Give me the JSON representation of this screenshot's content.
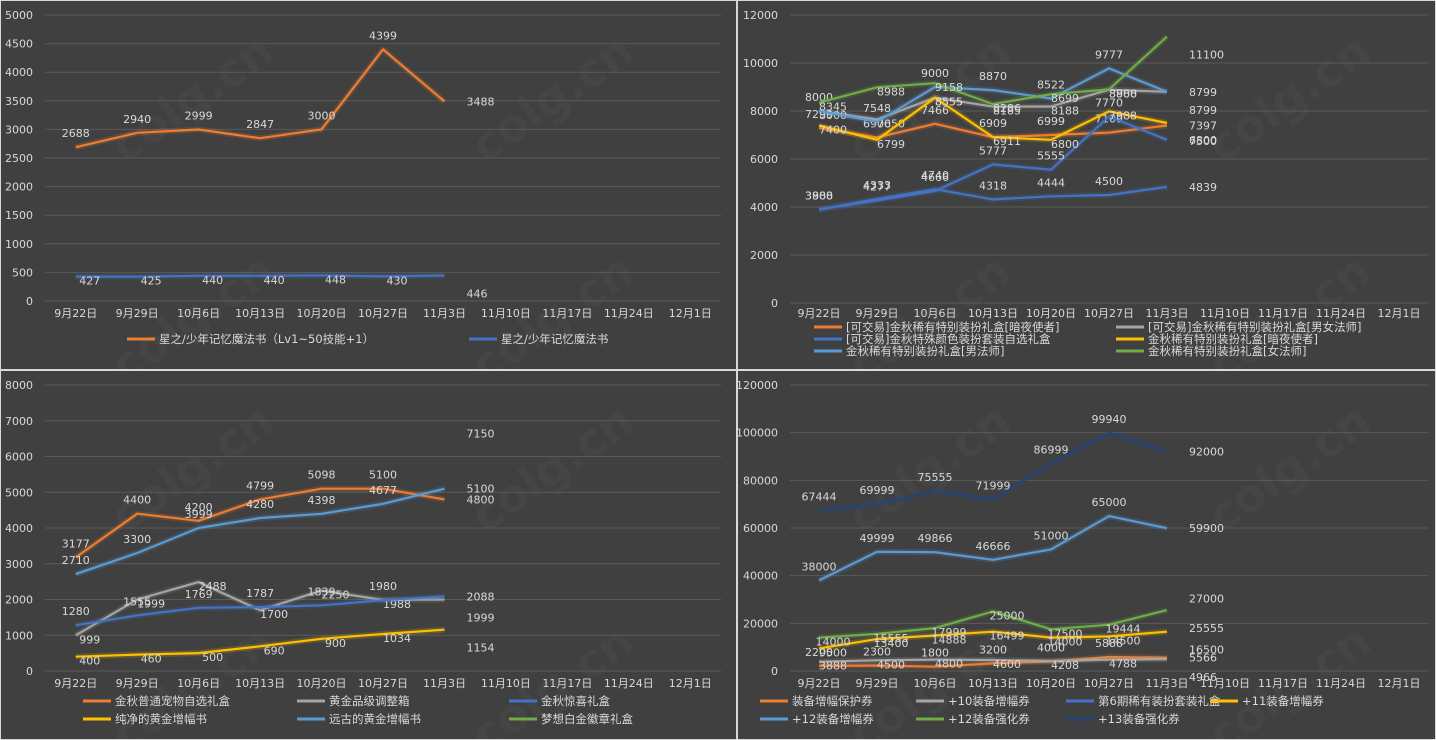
{
  "chart_data": [
    {
      "type": "line",
      "title": "",
      "xlabel": "",
      "ylabel": "",
      "categories": [
        "9月22日",
        "9月29日",
        "10月6日",
        "10月13日",
        "10月20日",
        "10月27日",
        "11月3日",
        "11月10日",
        "11月17日",
        "11月24日",
        "12月1日"
      ],
      "ylim": [
        0,
        5000
      ],
      "yticks": [
        0,
        500,
        1000,
        1500,
        2000,
        2500,
        3000,
        3500,
        4000,
        4500,
        5000
      ],
      "grid": true,
      "legend_position": "bottom",
      "series": [
        {
          "name": "星之/少年记忆魔法书（Lv1~50技能+1）",
          "color": "#ed7d31",
          "values": [
            2688,
            2940,
            2999,
            2847,
            3000,
            4399,
            3488
          ]
        },
        {
          "name": "星之/少年记忆魔法书",
          "color": "#4472c4",
          "values": [
            427,
            425,
            440,
            440,
            448,
            430,
            446
          ]
        }
      ]
    },
    {
      "type": "line",
      "title": "",
      "xlabel": "",
      "ylabel": "",
      "categories": [
        "9月22日",
        "9月29日",
        "10月6日",
        "10月13日",
        "10月20日",
        "10月27日",
        "11月3日",
        "11月10日",
        "11月17日",
        "11月24日",
        "12月1日"
      ],
      "ylim": [
        0,
        12000
      ],
      "yticks": [
        0,
        2000,
        4000,
        6000,
        8000,
        10000,
        12000
      ],
      "grid": true,
      "legend_position": "bottom",
      "series": [
        {
          "name": "[可交易]金秋稀有特别装扮礼盒[暗夜使者]",
          "color": "#ed7d31",
          "values": [
            7299,
            6900,
            7466,
            6909,
            6999,
            7100,
            7397
          ]
        },
        {
          "name": "[可交易]金秋稀有特别装扮礼盒[男女法师]",
          "color": "#a5a5a5",
          "values": [
            8000,
            7650,
            8555,
            8185,
            8188,
            8888,
            8799
          ]
        },
        {
          "name": "[可交易]金秋特殊颜色装扮套装自选礼盒",
          "color": "#4472c4",
          "values": [
            3900,
            4277,
            4666,
            5777,
            5555,
            7770,
            6800
          ]
        },
        {
          "name": "金秋稀有特别装扮礼盒[暗夜使者]",
          "color": "#ffc000",
          "values": [
            7400,
            6799,
            8555,
            6911,
            6800,
            7988,
            7500
          ]
        },
        {
          "name": "金秋稀有特别装扮礼盒[男法师]",
          "color": "#5b9bd5",
          "values": [
            8000,
            7548,
            9000,
            8870,
            8522,
            9777,
            8799
          ]
        },
        {
          "name": "金秋稀有特别装扮礼盒[女法师]",
          "color": "#70ad47",
          "values": [
            8345,
            8988,
            9158,
            8286,
            8699,
            8900,
            11100
          ]
        },
        {
          "name": "",
          "color": "#4472c4",
          "hidden_legend": true,
          "values": [
            3888,
            4333,
            4740,
            4318,
            4444,
            4500,
            4839
          ]
        }
      ]
    },
    {
      "type": "line",
      "title": "",
      "xlabel": "",
      "ylabel": "",
      "categories": [
        "9月22日",
        "9月29日",
        "10月6日",
        "10月13日",
        "10月20日",
        "10月27日",
        "11月3日",
        "11月10日",
        "11月17日",
        "11月24日",
        "12月1日"
      ],
      "ylim": [
        0,
        8000
      ],
      "yticks": [
        0,
        1000,
        2000,
        3000,
        4000,
        5000,
        6000,
        7000,
        8000
      ],
      "grid": true,
      "legend_position": "bottom",
      "series": [
        {
          "name": "金秋普通宠物自选礼盒",
          "color": "#ed7d31",
          "values": [
            3177,
            4400,
            4200,
            4799,
            5098,
            5100,
            4800
          ]
        },
        {
          "name": "黄金品级调整箱",
          "color": "#a5a5a5",
          "values": [
            999,
            1999,
            2488,
            1700,
            2250,
            1988,
            1999
          ]
        },
        {
          "name": "金秋惊喜礼盒",
          "color": "#4472c4",
          "values": [
            1280,
            1555,
            1769,
            1787,
            1839,
            1980,
            2088
          ]
        },
        {
          "name": "纯净的黄金增幅书",
          "color": "#ffc000",
          "values": [
            400,
            460,
            500,
            690,
            900,
            1034,
            1154
          ]
        },
        {
          "name": "远古的黄金增幅书",
          "color": "#5b9bd5",
          "values": [
            2710,
            3300,
            3999,
            4280,
            4398,
            4677,
            5100
          ]
        },
        {
          "name": "梦想白金徽章礼盒",
          "color": "#70ad47",
          "values": [
            null,
            null,
            null,
            null,
            null,
            null,
            7150
          ]
        }
      ]
    },
    {
      "type": "line",
      "title": "",
      "xlabel": "",
      "ylabel": "",
      "categories": [
        "9月22日",
        "9月29日",
        "10月6日",
        "10月13日",
        "10月20日",
        "10月27日",
        "11月3日",
        "11月10日",
        "11月17日",
        "11月24日",
        "12月1日"
      ],
      "ylim": [
        0,
        120000
      ],
      "yticks": [
        0,
        20000,
        40000,
        60000,
        80000,
        100000,
        120000
      ],
      "grid": true,
      "legend_position": "bottom",
      "series": [
        {
          "name": "装备增幅保护券",
          "color": "#ed7d31",
          "values": [
            2200,
            2300,
            1800,
            3200,
            4000,
            5888,
            5566
          ]
        },
        {
          "name": "+10装备增幅券",
          "color": "#a5a5a5",
          "values": [
            3888,
            4500,
            4800,
            4600,
            4208,
            4788,
            4966
          ]
        },
        {
          "name": "第6期稀有装扮套装礼盒",
          "color": "#4472c4",
          "values": [
            null,
            null,
            null,
            null,
            null,
            null,
            null
          ]
        },
        {
          "name": "+11装备增幅券",
          "color": "#ffc000",
          "values": [
            9500,
            13400,
            14888,
            16499,
            14000,
            14500,
            16500
          ]
        },
        {
          "name": "+12装备增幅券",
          "color": "#5b9bd5",
          "values": [
            38000,
            49999,
            49866,
            46666,
            51000,
            65000,
            59900
          ]
        },
        {
          "name": "+12装备强化券",
          "color": "#70ad47",
          "values": [
            14000,
            15555,
            17999,
            25000,
            17500,
            19444,
            25555
          ]
        },
        {
          "name": "+13装备强化券",
          "color": "#264478",
          "values": [
            67444,
            69999,
            75555,
            71999,
            86999,
            99940,
            92000
          ]
        }
      ],
      "annotations": [
        "27000"
      ]
    }
  ],
  "watermark": "colg.cn"
}
